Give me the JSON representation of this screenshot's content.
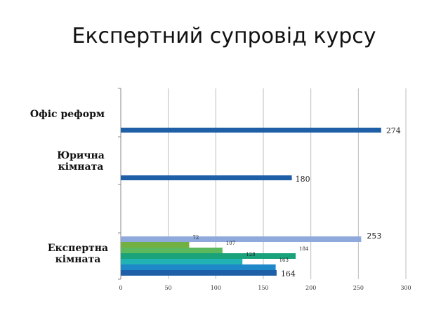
{
  "slide": {
    "title": "Експертний супровід курсу"
  },
  "chart_data": {
    "type": "bar",
    "orientation": "horizontal",
    "title": "",
    "xlabel": "",
    "ylabel": "",
    "xlim": [
      0,
      300
    ],
    "x_ticks": [
      "0",
      "50",
      "100",
      "150",
      "200",
      "250",
      "300"
    ],
    "grid": "vertical",
    "legend": "none",
    "categories": [
      {
        "label": "Офіс реформ",
        "bars": [
          {
            "value": 274,
            "label": "274",
            "color": "#1f5fa8"
          }
        ]
      },
      {
        "label": "Юрична кімната",
        "bars": [
          {
            "value": 180,
            "label": "180",
            "color": "#1f5fa8"
          }
        ]
      },
      {
        "label": "Експертна кімната",
        "bars": [
          {
            "value": 253,
            "label": "253",
            "color": "#8fa9dc"
          },
          {
            "value": 72,
            "label": "72",
            "color": "#72b043"
          },
          {
            "value": 107,
            "label": "107",
            "color": "#5cb85c"
          },
          {
            "value": 184,
            "label": "184",
            "color": "#1aa37a"
          },
          {
            "value": 128,
            "label": "128",
            "color": "#21b3b3"
          },
          {
            "value": 163,
            "label": "163",
            "color": "#1e88c8"
          },
          {
            "value": 164,
            "label": "164",
            "color": "#1f5fa8"
          }
        ]
      }
    ]
  }
}
